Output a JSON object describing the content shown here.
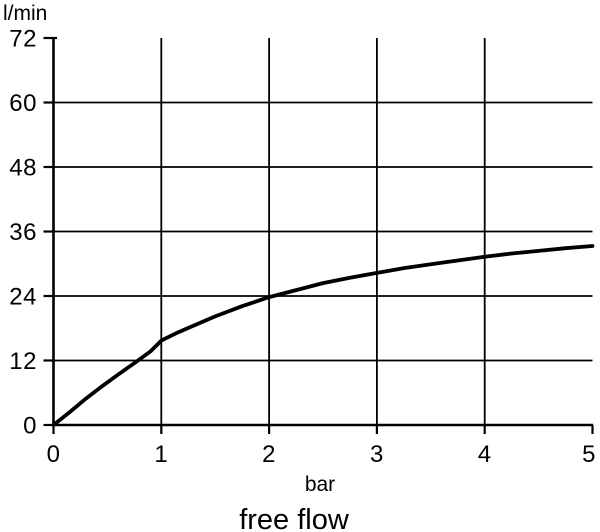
{
  "colors": {
    "ink": "#000000",
    "background": "#ffffff"
  },
  "chart_data": {
    "type": "line",
    "title": "free flow",
    "xlabel": "bar",
    "ylabel": "l/min",
    "xlim": [
      0,
      5
    ],
    "ylim": [
      0,
      72
    ],
    "x_ticks": [
      0,
      1,
      2,
      3,
      4,
      5
    ],
    "y_ticks": [
      0,
      12,
      24,
      36,
      48,
      60,
      72
    ],
    "grid": true,
    "legend": false,
    "series": [
      {
        "name": "free flow",
        "points": [
          [
            0,
            0
          ],
          [
            0.15,
            2.4
          ],
          [
            0.3,
            4.9
          ],
          [
            0.45,
            7.2
          ],
          [
            0.6,
            9.4
          ],
          [
            0.75,
            11.5
          ],
          [
            0.9,
            13.7
          ],
          [
            1,
            15.7
          ],
          [
            1.15,
            17.2
          ],
          [
            1.3,
            18.5
          ],
          [
            1.5,
            20.2
          ],
          [
            1.75,
            22.1
          ],
          [
            2,
            23.8
          ],
          [
            2.25,
            25.1
          ],
          [
            2.5,
            26.4
          ],
          [
            2.75,
            27.4
          ],
          [
            3,
            28.3
          ],
          [
            3.25,
            29.2
          ],
          [
            3.5,
            29.9
          ],
          [
            3.75,
            30.6
          ],
          [
            4,
            31.3
          ],
          [
            4.25,
            31.9
          ],
          [
            4.5,
            32.4
          ],
          [
            4.75,
            32.9
          ],
          [
            5,
            33.3
          ]
        ]
      }
    ]
  }
}
